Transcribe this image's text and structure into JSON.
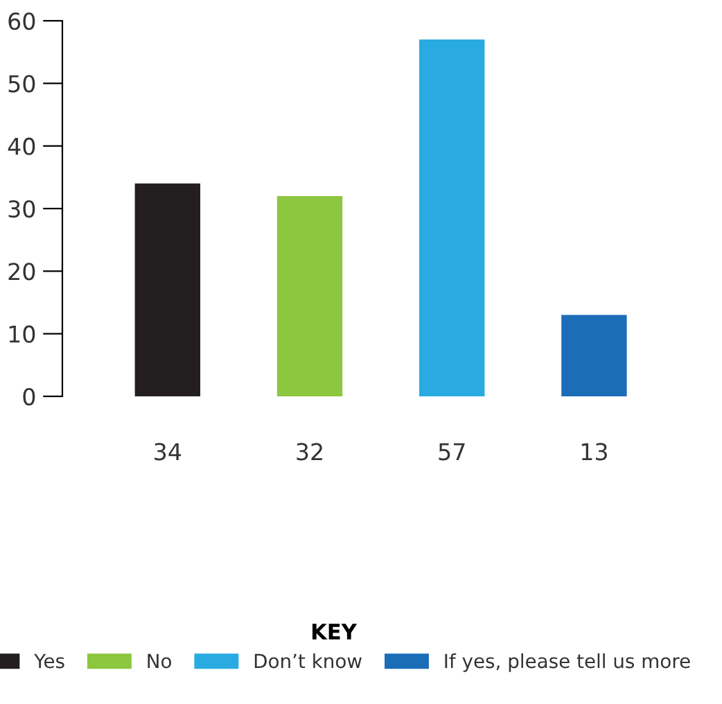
{
  "chart_data": {
    "type": "bar",
    "categories": [
      "34",
      "32",
      "57",
      "13"
    ],
    "series": [
      {
        "name": "Yes",
        "color": "#231f20",
        "values": [
          34,
          null,
          null,
          null
        ]
      },
      {
        "name": "No",
        "color": "#8dc63f",
        "values": [
          null,
          32,
          null,
          null
        ]
      },
      {
        "name": "Don’t know",
        "color": "#29abe2",
        "values": [
          null,
          null,
          57,
          null
        ]
      },
      {
        "name": "If yes, please tell us more",
        "color": "#1b6db8",
        "values": [
          null,
          null,
          null,
          13
        ]
      }
    ],
    "ylim": [
      0,
      60
    ],
    "yticks": [
      0,
      10,
      20,
      30,
      40,
      50,
      60
    ],
    "legend": "bottom",
    "legend_title": "KEY",
    "grid": false
  }
}
